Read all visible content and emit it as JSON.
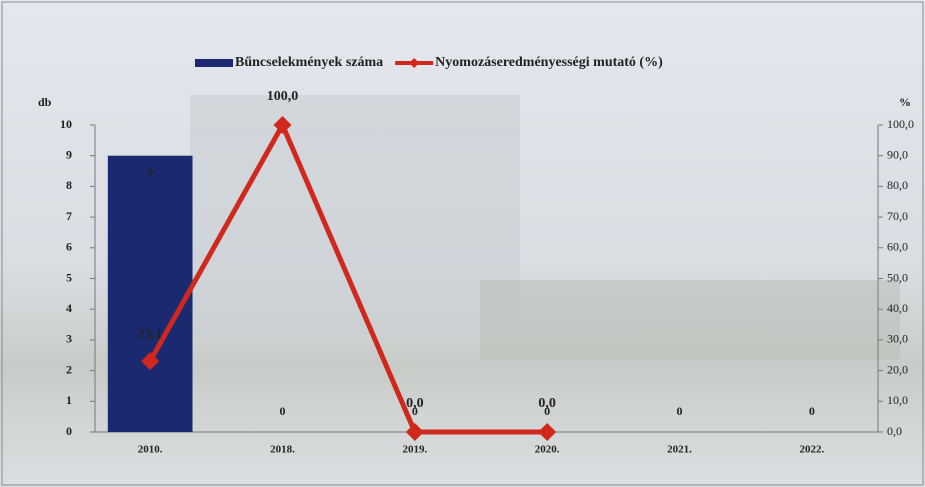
{
  "chart_data": {
    "type": "combo",
    "categories": [
      "2010.",
      "2018.",
      "2019.",
      "2020.",
      "2021.",
      "2022."
    ],
    "series": [
      {
        "name": "Bűncselekmények száma",
        "type": "bar",
        "color": "#1b2a70",
        "values": [
          9,
          0,
          0,
          0,
          0,
          0
        ]
      },
      {
        "name": "Nyomozáseredményességi mutató (%)",
        "type": "line",
        "axis": "y2",
        "color": "#d0281c",
        "values": [
          23.1,
          100,
          0,
          0,
          null,
          null
        ],
        "value_labels": [
          "23,1",
          "100,0",
          "0,0",
          "0,0",
          null,
          null
        ]
      }
    ],
    "ylabel": "db",
    "y2label": "%",
    "ylim": [
      0,
      10
    ],
    "yticks": [
      0,
      1,
      2,
      3,
      4,
      5,
      6,
      7,
      8,
      9,
      10
    ],
    "y2lim": [
      0,
      100
    ],
    "y2ticks": [
      {
        "value": 0,
        "label": "0,0"
      },
      {
        "value": 10,
        "label": "10,0"
      },
      {
        "value": 20,
        "label": "20,0"
      },
      {
        "value": 30,
        "label": "30,0"
      },
      {
        "value": 40,
        "label": "40,0"
      },
      {
        "value": 50,
        "label": "50,0"
      },
      {
        "value": 60,
        "label": "60,0"
      },
      {
        "value": 70,
        "label": "70,0"
      },
      {
        "value": 80,
        "label": "80,0"
      },
      {
        "value": 90,
        "label": "90,0"
      },
      {
        "value": 100,
        "label": "100,0"
      }
    ],
    "legend": "top"
  }
}
